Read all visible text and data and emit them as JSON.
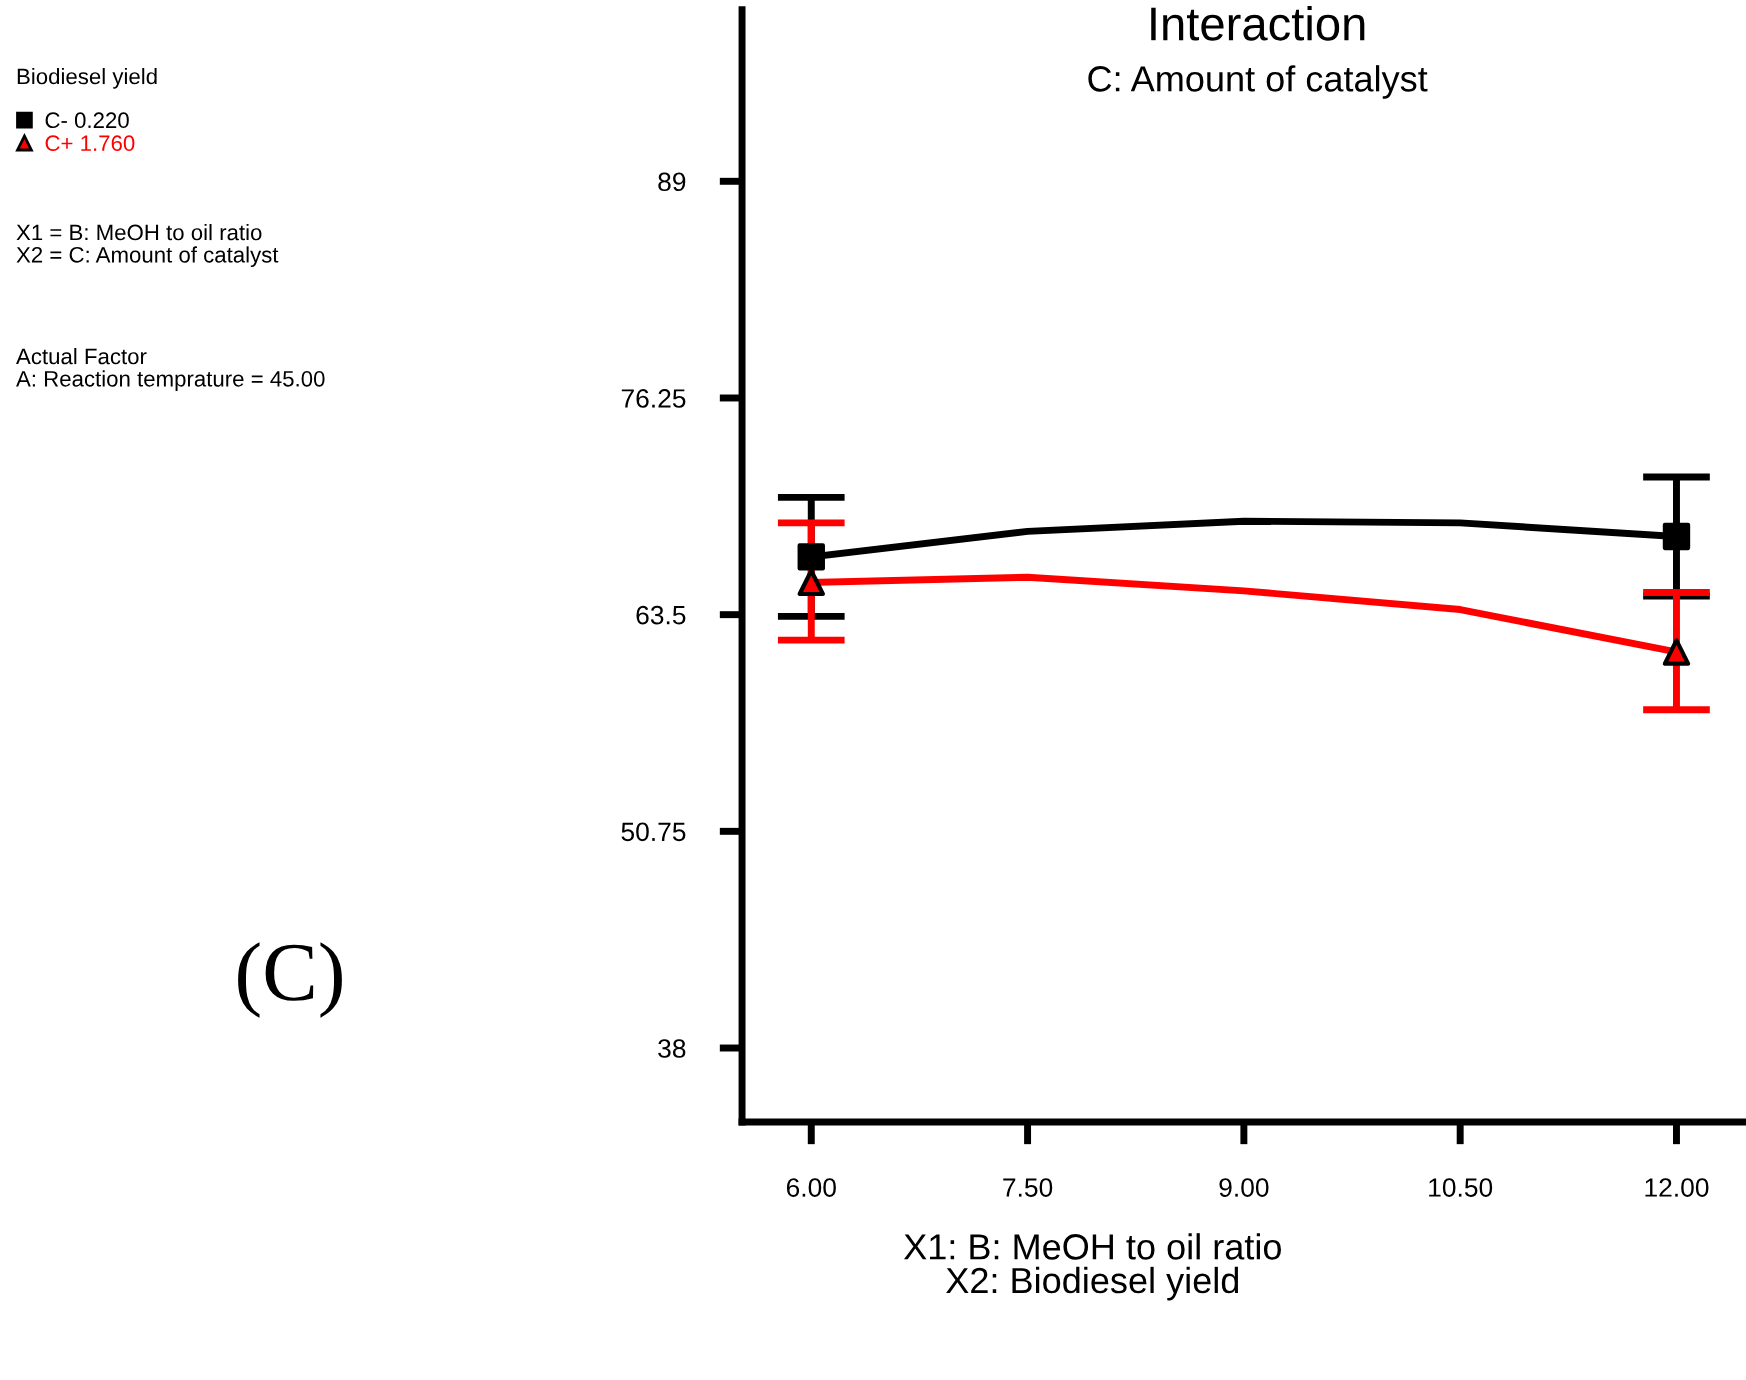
{
  "chart_data": {
    "type": "scatter",
    "title": "Interaction",
    "subtitle": "C: Amount of catalyst",
    "xlabel": "X1: B: MeOH to oil ratio\nX2: Biodiesel yield",
    "annotations": [
      "Biodiesel yield",
      "X1 = B: MeOH to oil ratio\nX2 = C: Amount of catalyst",
      "Actual Factor\nA: Reaction temprature = 45.00",
      "(C)"
    ],
    "series": [
      {
        "type": "line",
        "color": "#000000",
        "marker": "none",
        "x": [
          6,
          7.5,
          9,
          10.5,
          12
        ],
        "values": [
          66.9,
          68.4,
          69.0,
          68.9,
          68.1
        ]
      },
      {
        "type": "line",
        "color": "#ff0000",
        "marker": "none",
        "x": [
          6,
          7.5,
          9,
          10.5,
          12
        ],
        "values": [
          65.4,
          65.7,
          64.9,
          63.8,
          61.3
        ]
      },
      {
        "name": "C- 0.220",
        "color": "#000000",
        "marker": "square",
        "x": [
          6,
          12
        ],
        "values": [
          66.9,
          68.1
        ],
        "errors": [
          [
            63.4,
            70.4
          ],
          [
            64.6,
            71.6
          ]
        ]
      },
      {
        "name": "C+ 1.760",
        "color": "#ff0000",
        "marker": "triangle",
        "x": [
          6,
          12
        ],
        "values": [
          65.4,
          61.3
        ],
        "errors": [
          [
            62.0,
            68.9
          ],
          [
            57.9,
            64.8
          ]
        ]
      }
    ],
    "xlim": [
      5.52,
      12.47
    ],
    "xticks": [
      {
        "value": 6,
        "label": "6.00"
      },
      {
        "value": 7.5,
        "label": "7.50"
      },
      {
        "value": 9,
        "label": "9.00"
      },
      {
        "value": 10.5,
        "label": "10.50"
      },
      {
        "value": 12,
        "label": "12.00"
      }
    ],
    "ylim": [
      33.65,
      99.1
    ],
    "yticks": [
      38,
      50.75,
      63.5,
      76.25,
      89
    ],
    "legend": "left",
    "grid": false
  }
}
